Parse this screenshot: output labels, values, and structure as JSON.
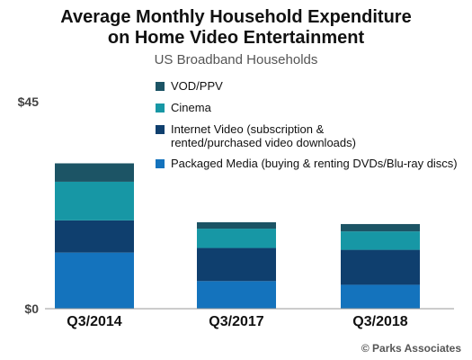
{
  "title_line1": "Average Monthly Household Expenditure",
  "title_line2": "on Home Video Entertainment",
  "subtitle": "US Broadband Households",
  "credit": "© Parks Associates",
  "chart_data": {
    "type": "bar",
    "stacked": true,
    "categories": [
      "Q3/2014",
      "Q3/2017",
      "Q3/2018"
    ],
    "series": [
      {
        "name": "Packaged Media (buying & renting DVDs/Blu-ray discs)",
        "color": "#1473bd",
        "values": [
          12.2,
          6.0,
          5.2
        ]
      },
      {
        "name": "Internet Video (subscription & rented/purchased video downloads)",
        "color": "#0f3f6e",
        "values": [
          7.0,
          7.2,
          7.6
        ]
      },
      {
        "name": "Cinema",
        "color": "#1797a5",
        "values": [
          8.4,
          4.2,
          4.0
        ]
      },
      {
        "name": "VOD/PPV",
        "color": "#1c5465",
        "values": [
          4.0,
          1.4,
          1.6
        ]
      }
    ],
    "ylim": [
      0,
      45
    ],
    "y_tick_labels": [
      "$0",
      "$45"
    ],
    "legend_position": "top-right"
  }
}
